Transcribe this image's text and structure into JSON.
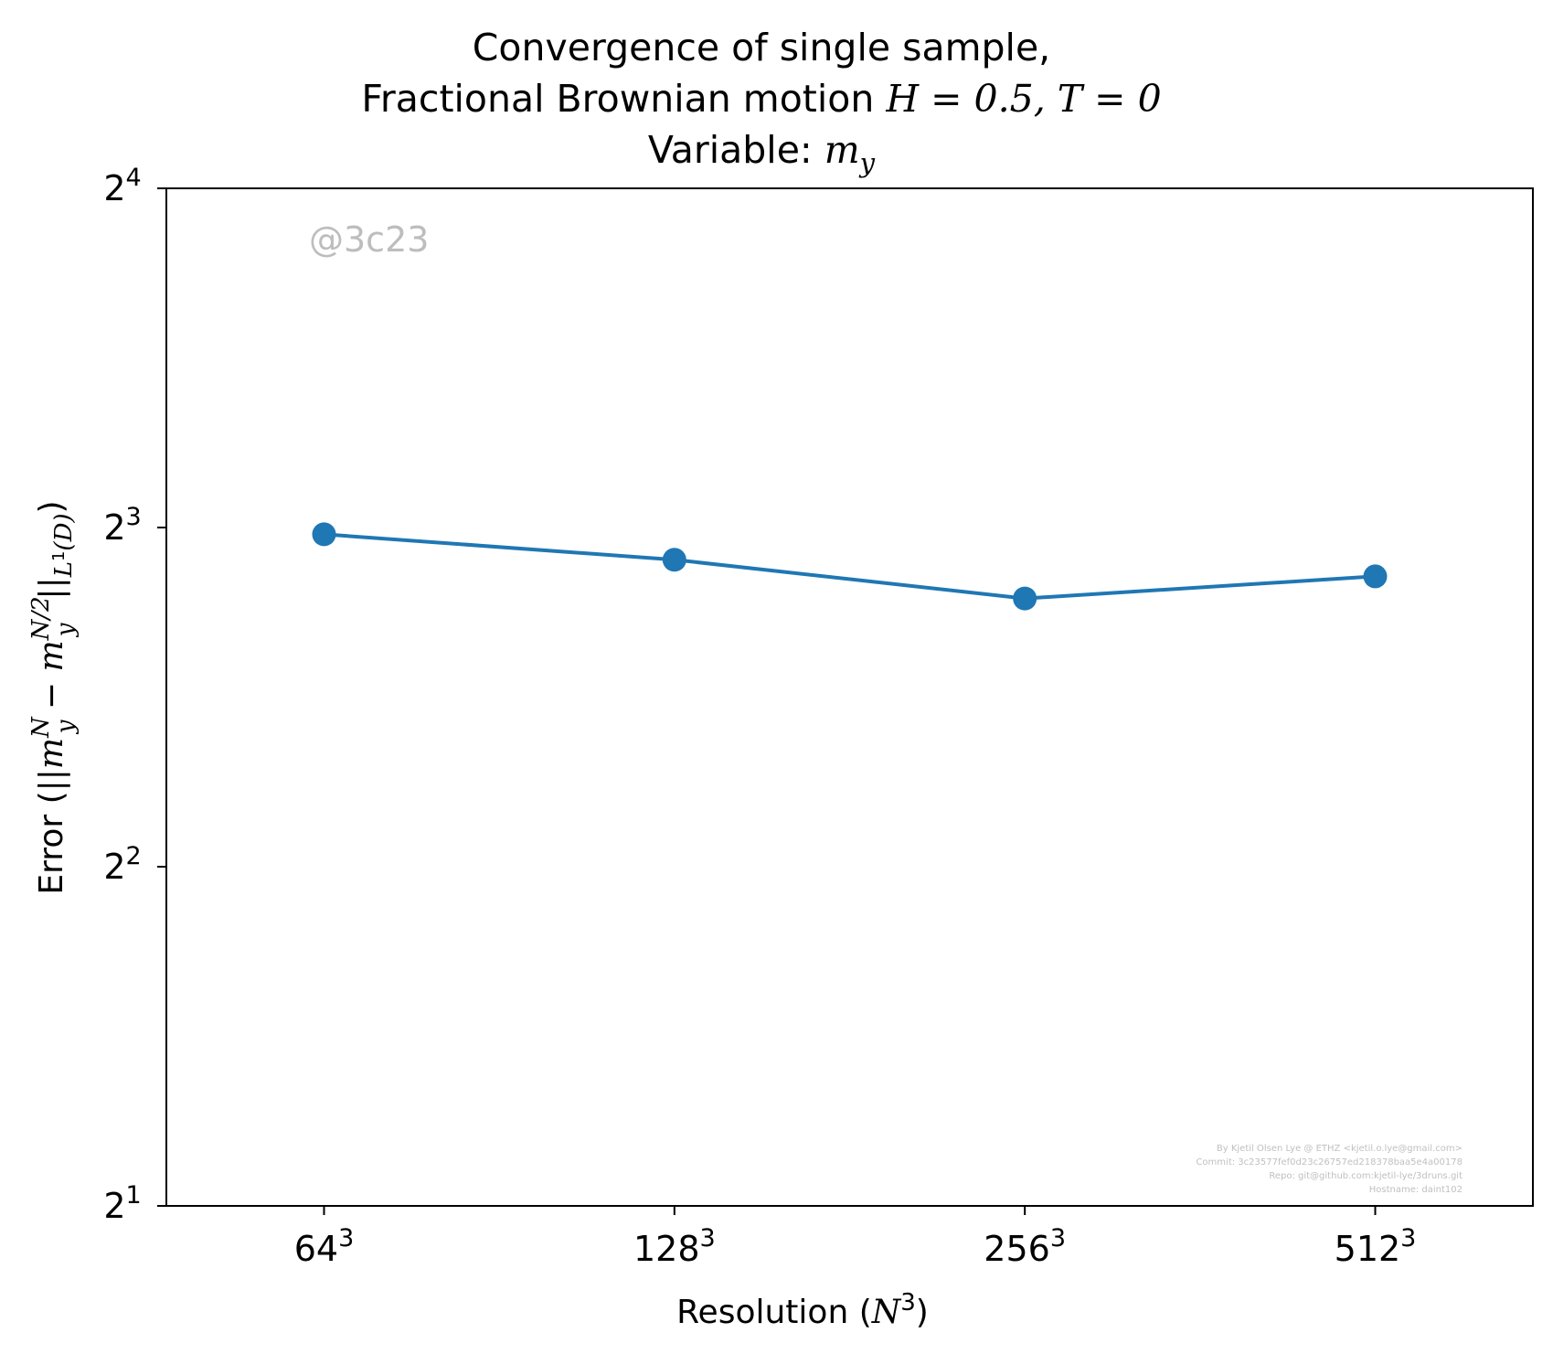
{
  "chart_data": {
    "type": "line",
    "title": {
      "line1": "Convergence of single sample,",
      "line2_prefix": "Fractional Brownian motion ",
      "line2_math": "H = 0.5, T = 0",
      "line3_prefix": "Variable: ",
      "line3_math": "m",
      "line3_math_sub": "y"
    },
    "xlabel": {
      "prefix": "Resolution (",
      "math": "N",
      "sup": "3",
      "suffix": ")"
    },
    "ylabel": {
      "prefix": "Error (||",
      "m1": "m",
      "m1_sub": "y",
      "m1_sup": "N",
      "minus": " − ",
      "m2": "m",
      "m2_sub": "y",
      "m2_sup": "N/2",
      "bars": "||",
      "norm_sub": "L",
      "norm_sub_sup": "1",
      "norm_domain": "(D)",
      "suffix": ")"
    },
    "x_scale": "log2",
    "y_scale": "log2",
    "x_ticks": [
      {
        "base": "64",
        "exp": "3"
      },
      {
        "base": "128",
        "exp": "3"
      },
      {
        "base": "256",
        "exp": "3"
      },
      {
        "base": "512",
        "exp": "3"
      }
    ],
    "y_ticks": [
      {
        "base": "2",
        "exp": "1"
      },
      {
        "base": "2",
        "exp": "2"
      },
      {
        "base": "2",
        "exp": "3"
      },
      {
        "base": "2",
        "exp": "4"
      }
    ],
    "x": [
      262144,
      2097152,
      16777216,
      134217728
    ],
    "series": [
      {
        "values": [
          7.89,
          7.49,
          6.92,
          7.24
        ],
        "color": "#1f77b4",
        "marker": "circle"
      }
    ],
    "ylim": [
      2,
      16
    ],
    "grid": false,
    "legend": "none",
    "annotation": "@3c23",
    "footer": [
      "By Kjetil Olsen Lye @ ETHZ <kjetil.o.lye@gmail.com>",
      "Commit: 3c23577fef0d23c26757ed218378baa5e4a00178",
      "Repo: git@github.com:kjetil-lye/3druns.git",
      "Hostname: daint102"
    ]
  }
}
